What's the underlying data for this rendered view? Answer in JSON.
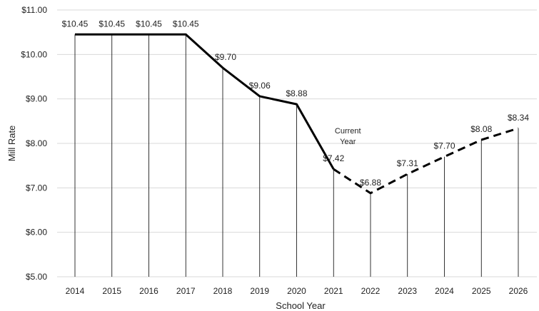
{
  "chart_data": {
    "type": "line",
    "title": "",
    "xlabel": "School Year",
    "ylabel": "Mill Rate",
    "categories": [
      "2014",
      "2015",
      "2016",
      "2017",
      "2018",
      "2019",
      "2020",
      "2021",
      "2022",
      "2023",
      "2024",
      "2025",
      "2026"
    ],
    "series": [
      {
        "values": [
          10.45,
          10.45,
          10.45,
          10.45,
          9.7,
          9.06,
          8.88,
          7.42,
          6.88,
          7.31,
          7.7,
          8.08,
          8.34
        ],
        "data_labels": [
          "$10.45",
          "$10.45",
          "$10.45",
          "$10.45",
          "$9.70",
          "$9.06",
          "$8.88",
          "$7.42",
          "$6.88",
          "$7.31",
          "$7.70",
          "$8.08",
          "$8.34"
        ],
        "line_style": {
          "solid_through": "2021",
          "dashed_from": "2021"
        },
        "color": "#000000"
      }
    ],
    "ylim": [
      5,
      11
    ],
    "y_ticks": [
      5,
      6,
      7,
      8,
      9,
      10,
      11
    ],
    "y_tick_labels": [
      "$5.00",
      "$6.00",
      "$7.00",
      "$8.00",
      "$9.00",
      "$10.00",
      "$11.00"
    ],
    "grid": "horizontal",
    "drop_lines": true,
    "annotation": {
      "lines": [
        "Current",
        "Year"
      ],
      "category": "2021"
    },
    "colors": {
      "line": "#000000",
      "grid": "#d9d9d9",
      "drop_line": "#000000",
      "text": "#222222"
    }
  }
}
